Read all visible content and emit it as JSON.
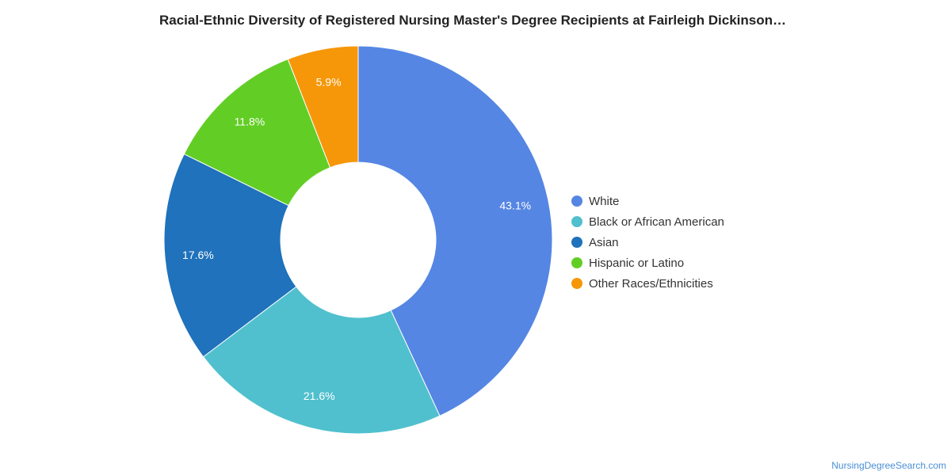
{
  "chart_data": {
    "type": "pie",
    "variant": "donut",
    "title": "Racial-Ethnic Diversity of Registered Nursing Master's Degree Recipients at Fairleigh Dickinson…",
    "categories": [
      "White",
      "Black or African American",
      "Asian",
      "Hispanic or Latino",
      "Other Races/Ethnicities"
    ],
    "values": [
      43.1,
      21.6,
      17.6,
      11.8,
      5.9
    ],
    "labels": [
      "43.1%",
      "21.6%",
      "17.6%",
      "11.8%",
      "5.9%"
    ],
    "colors": [
      "#5586e3",
      "#50c0ce",
      "#1f72bb",
      "#62ce25",
      "#f69709"
    ],
    "legend_position": "right"
  },
  "credit": "NursingDegreeSearch.com"
}
